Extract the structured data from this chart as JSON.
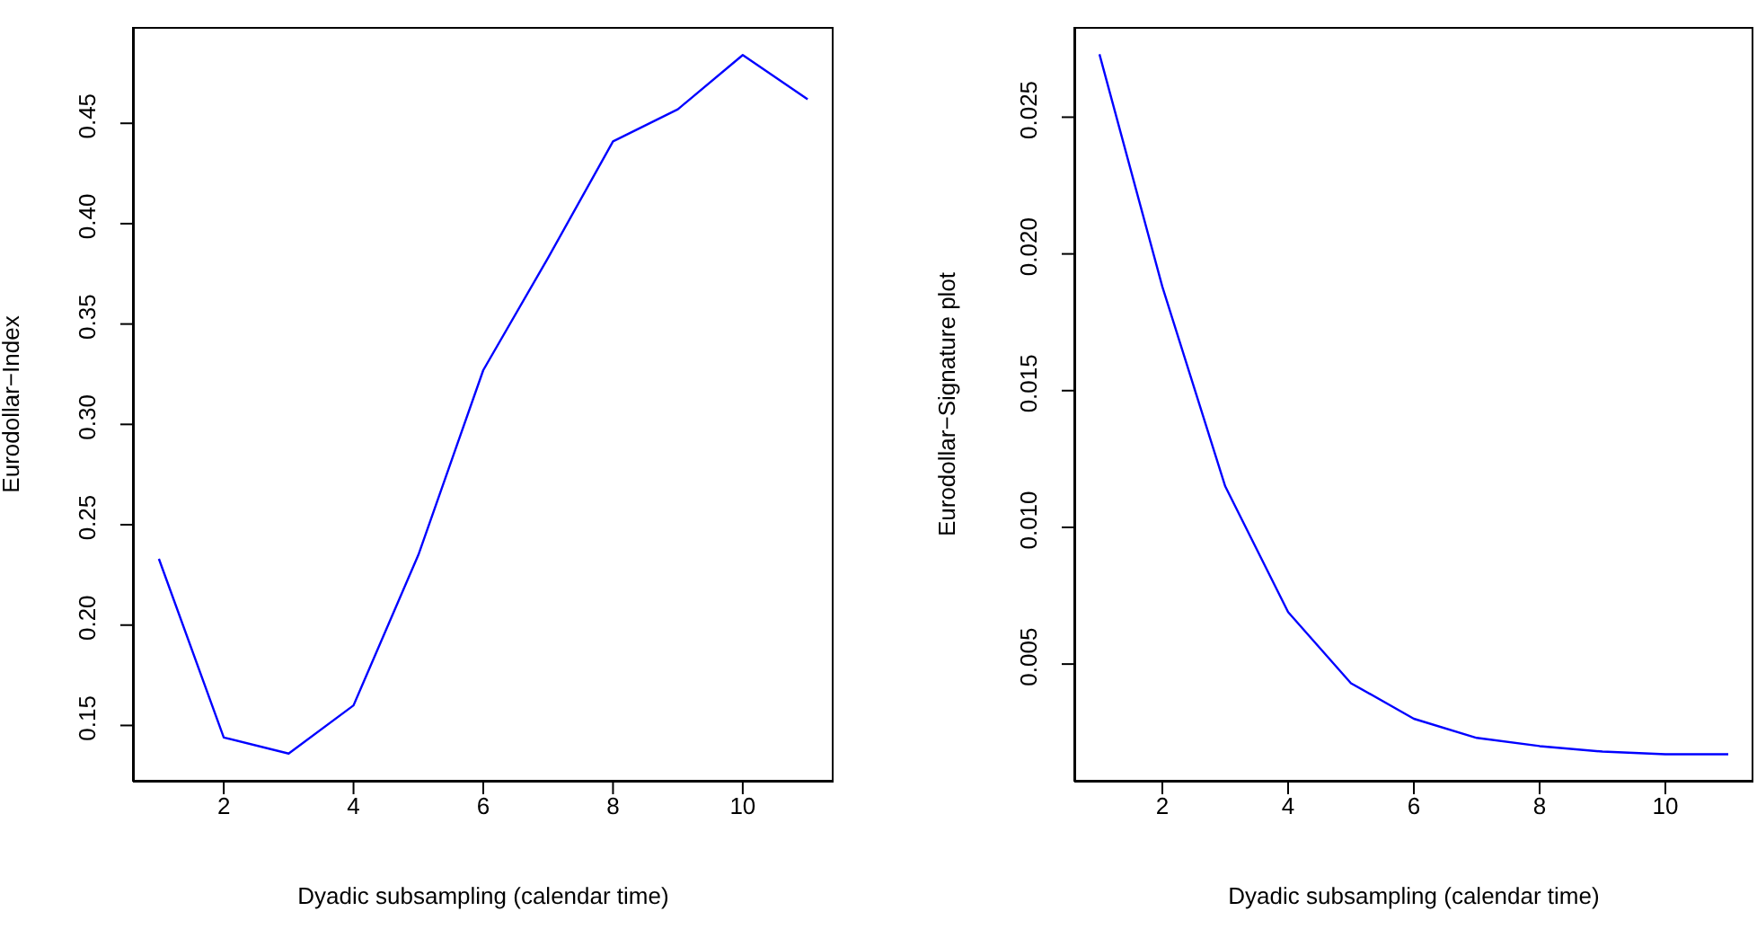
{
  "chart_data": [
    {
      "type": "line",
      "xlabel": "Dyadic subsampling (calendar time)",
      "ylabel": "Eurodollar−Index",
      "x": [
        1,
        2,
        3,
        4,
        5,
        6,
        7,
        8,
        9,
        10,
        11
      ],
      "series": [
        {
          "color": "#0000ff",
          "values": [
            0.233,
            0.144,
            0.136,
            0.16,
            0.235,
            0.327,
            0.383,
            0.441,
            0.457,
            0.484,
            0.462
          ]
        }
      ],
      "xlim": [
        0.6,
        11.4
      ],
      "xticks": [
        2,
        4,
        6,
        8,
        10
      ],
      "ylim": [
        0.122,
        0.498
      ],
      "yticks": [
        0.15,
        {
          "value": 0.2,
          "label": "0.20"
        },
        0.25,
        {
          "value": 0.3,
          "label": "0.30"
        },
        0.35,
        {
          "value": 0.4,
          "label": "0.40"
        },
        0.45
      ],
      "grid": false,
      "legend": false,
      "marker": "none",
      "line_style": "solid"
    },
    {
      "type": "line",
      "xlabel": "Dyadic subsampling (calendar time)",
      "ylabel": "Eurodollar−Signature plot",
      "x": [
        1,
        2,
        3,
        4,
        5,
        6,
        7,
        8,
        9,
        10,
        11
      ],
      "series": [
        {
          "color": "#0000ff",
          "values": [
            0.0273,
            0.0188,
            0.0115,
            0.0069,
            0.0043,
            0.003,
            0.0023,
            0.002,
            0.0018,
            0.0017,
            0.0017
          ]
        }
      ],
      "xlim": [
        0.6,
        11.4
      ],
      "xticks": [
        2,
        4,
        6,
        8,
        10
      ],
      "ylim": [
        0.0007,
        0.0283
      ],
      "yticks": [
        0.005,
        {
          "value": 0.01,
          "label": "0.010"
        },
        0.015,
        {
          "value": 0.02,
          "label": "0.020"
        },
        0.025
      ],
      "grid": false,
      "legend": false,
      "marker": "none",
      "line_style": "solid"
    }
  ]
}
